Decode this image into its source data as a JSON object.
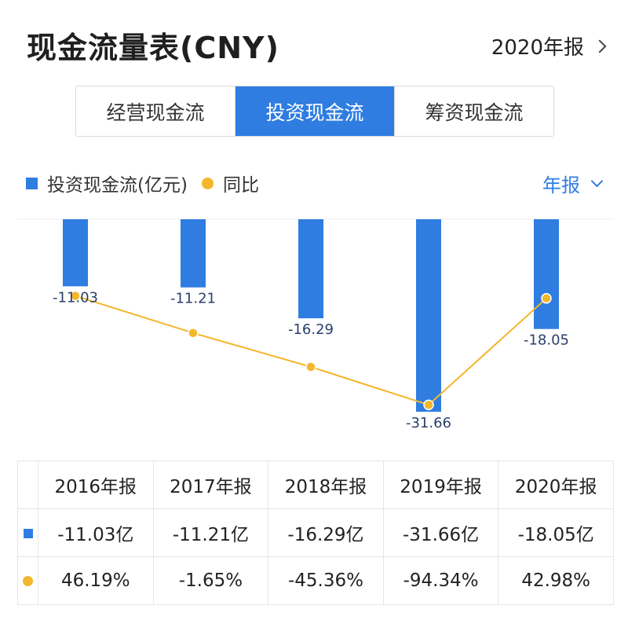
{
  "header": {
    "title": "现金流量表(CNY)",
    "period_label": "2020年报"
  },
  "tabs": [
    {
      "label": "经营现金流",
      "active": false
    },
    {
      "label": "投资现金流",
      "active": true
    },
    {
      "label": "筹资现金流",
      "active": false
    }
  ],
  "legend": {
    "series1": "投资现金流(亿元)",
    "series2": "同比",
    "report_type": "年报"
  },
  "colors": {
    "bar": "#2f7de1",
    "line": "#f4b62c",
    "positive": "#d0404a",
    "negative": "#1e9e6a"
  },
  "chart_data": {
    "type": "bar",
    "categories": [
      "2016年报",
      "2017年报",
      "2018年报",
      "2019年报",
      "2020年报"
    ],
    "series": [
      {
        "name": "投资现金流(亿元)",
        "type": "bar",
        "values": [
          -11.03,
          -11.21,
          -16.29,
          -31.66,
          -18.05
        ],
        "labels": [
          "-11.03",
          "-11.21",
          "-16.29",
          "-31.66",
          "-18.05"
        ]
      },
      {
        "name": "同比",
        "type": "line",
        "values": [
          46.19,
          -1.65,
          -45.36,
          -94.34,
          42.98
        ]
      }
    ],
    "bar_ylim": [
      -35,
      0
    ],
    "line_ylim": [
      -160,
      145
    ]
  },
  "table": {
    "headers": [
      "2016年报",
      "2017年报",
      "2018年报",
      "2019年报",
      "2020年报"
    ],
    "values_row": [
      "-11.03亿",
      "-11.21亿",
      "-16.29亿",
      "-31.66亿",
      "-18.05亿"
    ],
    "yoy_row": [
      "46.19%",
      "-1.65%",
      "-45.36%",
      "-94.34%",
      "42.98%"
    ]
  }
}
